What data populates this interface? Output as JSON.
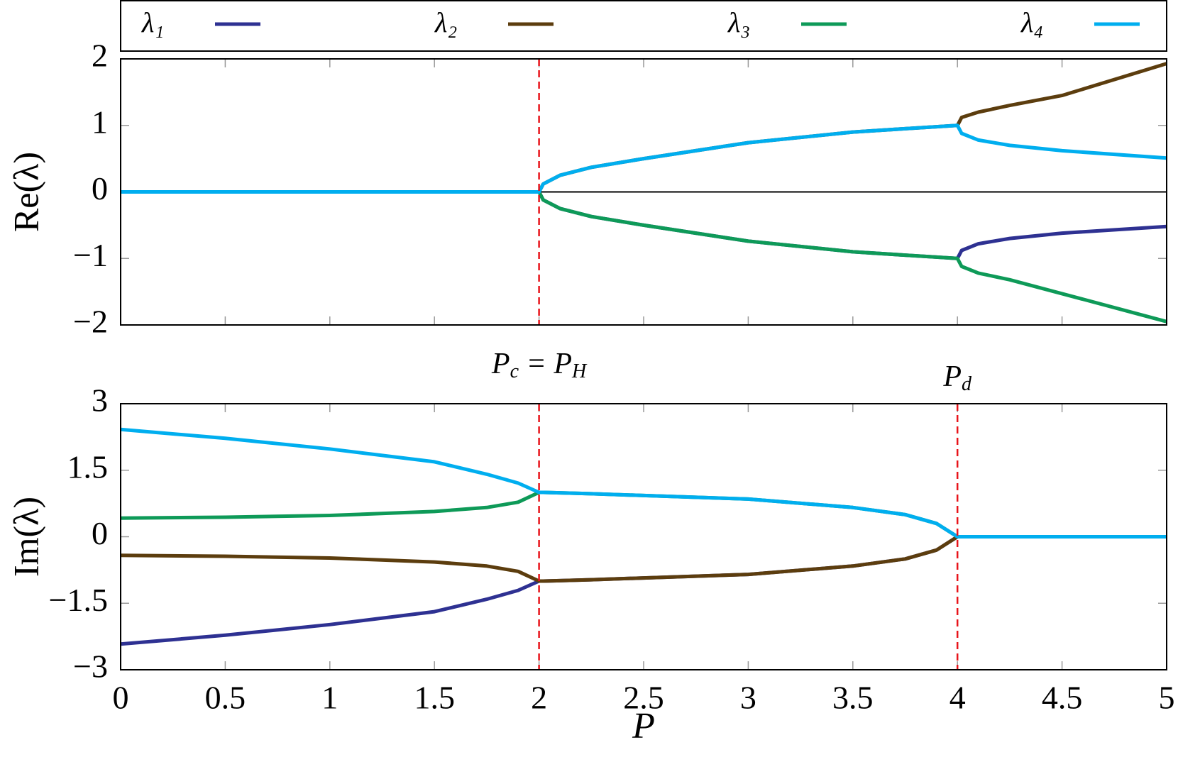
{
  "chart_data": [
    {
      "type": "line",
      "ylabel": "Re(λ)",
      "x": [
        0,
        0.5,
        1,
        1.5,
        1.75,
        1.9,
        2,
        2.02,
        2.1,
        2.25,
        2.5,
        3,
        3.5,
        3.75,
        3.9,
        4,
        4.02,
        4.1,
        4.25,
        4.5,
        5
      ],
      "series": [
        {
          "name": "λ₁",
          "color": "#2e3192",
          "values": [
            0,
            0,
            0,
            0,
            0,
            0,
            0,
            -0.12,
            -0.25,
            -0.37,
            -0.5,
            -0.74,
            -0.9,
            -0.95,
            -0.98,
            -1,
            -0.88,
            -0.78,
            -0.7,
            -0.62,
            -0.52
          ]
        },
        {
          "name": "λ₂",
          "color": "#5c3d0e",
          "values": [
            0,
            0,
            0,
            0,
            0,
            0,
            0,
            0.12,
            0.25,
            0.37,
            0.5,
            0.74,
            0.9,
            0.95,
            0.98,
            1,
            1.12,
            1.2,
            1.3,
            1.45,
            1.93
          ]
        },
        {
          "name": "λ₃",
          "color": "#0e9a58",
          "values": [
            0,
            0,
            0,
            0,
            0,
            0,
            0,
            -0.12,
            -0.25,
            -0.37,
            -0.5,
            -0.74,
            -0.9,
            -0.95,
            -0.98,
            -1,
            -1.12,
            -1.22,
            -1.32,
            -1.53,
            -1.95
          ]
        },
        {
          "name": "λ₄",
          "color": "#00aeef",
          "values": [
            0,
            0,
            0,
            0,
            0,
            0,
            0,
            0.12,
            0.25,
            0.37,
            0.5,
            0.74,
            0.9,
            0.95,
            0.98,
            1,
            0.88,
            0.78,
            0.7,
            0.62,
            0.51
          ]
        }
      ],
      "xlim": [
        0,
        5
      ],
      "xticks": [
        0,
        0.5,
        1,
        1.5,
        2,
        2.5,
        3,
        3.5,
        4,
        4.5,
        5
      ],
      "ylim": [
        -2,
        2
      ],
      "yticks": [
        {
          "value": -2,
          "label": "−2"
        },
        {
          "value": -1,
          "label": "−1"
        },
        0,
        1,
        2
      ],
      "vlines": [
        2
      ],
      "hlines": [
        0
      ]
    },
    {
      "type": "line",
      "ylabel": "Im(λ)",
      "xlabel": "P",
      "x": [
        0,
        0.5,
        1,
        1.5,
        1.75,
        1.9,
        2,
        2.02,
        2.1,
        2.25,
        2.5,
        3,
        3.5,
        3.75,
        3.9,
        4,
        4.02,
        4.1,
        4.25,
        4.5,
        5
      ],
      "series": [
        {
          "color": "#2e3192",
          "values": [
            -2.42,
            -2.22,
            -1.98,
            -1.69,
            -1.41,
            -1.21,
            -1,
            -1,
            -0.99,
            -0.97,
            -0.93,
            -0.85,
            -0.66,
            -0.5,
            -0.3,
            0,
            0,
            0,
            0,
            0,
            0
          ]
        },
        {
          "color": "#5c3d0e",
          "values": [
            -0.42,
            -0.44,
            -0.48,
            -0.57,
            -0.66,
            -0.78,
            -1,
            -1,
            -0.99,
            -0.97,
            -0.93,
            -0.85,
            -0.66,
            -0.5,
            -0.3,
            0,
            0,
            0,
            0,
            0,
            0
          ]
        },
        {
          "color": "#0e9a58",
          "values": [
            0.42,
            0.44,
            0.48,
            0.57,
            0.66,
            0.78,
            1,
            1,
            0.99,
            0.97,
            0.93,
            0.85,
            0.66,
            0.5,
            0.3,
            0,
            0,
            0,
            0,
            0,
            0
          ]
        },
        {
          "color": "#00aeef",
          "values": [
            2.42,
            2.22,
            1.98,
            1.69,
            1.41,
            1.21,
            1,
            1,
            0.99,
            0.97,
            0.93,
            0.85,
            0.66,
            0.5,
            0.3,
            0,
            0,
            0,
            0,
            0,
            0
          ]
        }
      ],
      "xlim": [
        0,
        5
      ],
      "xticks": [
        0,
        0.5,
        1,
        1.5,
        2,
        2.5,
        3,
        3.5,
        4,
        4.5,
        5
      ],
      "ylim": [
        -3,
        3
      ],
      "yticks": [
        {
          "value": -3,
          "label": "−3"
        },
        {
          "value": -1.5,
          "label": "−1.5"
        },
        0,
        1.5,
        3
      ],
      "vlines": [
        2,
        4
      ],
      "annotations": [
        {
          "x": 2,
          "parts": [
            "P",
            "c",
            " = P",
            "H"
          ]
        },
        {
          "x": 4,
          "parts": [
            "P",
            "d"
          ]
        }
      ]
    }
  ]
}
